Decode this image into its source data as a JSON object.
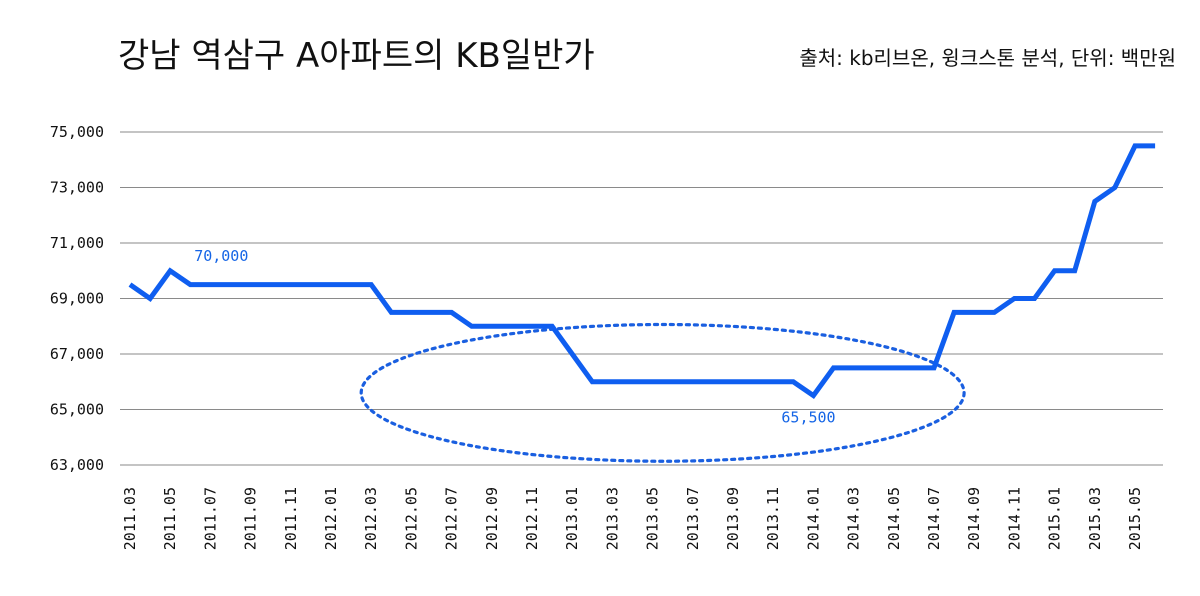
{
  "chart_data": {
    "type": "line",
    "title": "강남 역삼구 A아파트의 KB일반가",
    "source": "출처: kb리브온, 윙크스톤 분석, 단위: 백만원",
    "ylim": [
      63000,
      75000
    ],
    "yticks": [
      "63,000",
      "65,000",
      "67,000",
      "69,000",
      "71,000",
      "73,000",
      "75,000"
    ],
    "ytick_values": [
      63000,
      65000,
      67000,
      69000,
      71000,
      73000,
      75000
    ],
    "x": [
      "2011.03",
      "2011.04",
      "2011.05",
      "2011.06",
      "2011.07",
      "2011.08",
      "2011.09",
      "2011.10",
      "2011.11",
      "2011.12",
      "2012.01",
      "2012.02",
      "2012.03",
      "2012.04",
      "2012.05",
      "2012.06",
      "2012.07",
      "2012.08",
      "2012.09",
      "2012.10",
      "2012.11",
      "2012.12",
      "2013.01",
      "2013.02",
      "2013.03",
      "2013.04",
      "2013.05",
      "2013.06",
      "2013.07",
      "2013.08",
      "2013.09",
      "2013.10",
      "2013.11",
      "2013.12",
      "2014.01",
      "2014.02",
      "2014.03",
      "2014.04",
      "2014.05",
      "2014.06",
      "2014.07",
      "2014.08",
      "2014.09",
      "2014.10",
      "2014.11",
      "2014.12",
      "2015.01",
      "2015.02",
      "2015.03",
      "2015.04",
      "2015.05",
      "2015.06"
    ],
    "xtick_labels": [
      "2011.03",
      "2011.05",
      "2011.07",
      "2011.09",
      "2011.11",
      "2012.01",
      "2012.03",
      "2012.05",
      "2012.07",
      "2012.09",
      "2012.11",
      "2013.01",
      "2013.03",
      "2013.05",
      "2013.07",
      "2013.09",
      "2013.11",
      "2014.01",
      "2014.03",
      "2014.05",
      "2014.07",
      "2014.09",
      "2014.11",
      "2015.01",
      "2015.03",
      "2015.05"
    ],
    "series": [
      {
        "color": "#0f5ef0",
        "values": [
          69500,
          69000,
          70000,
          69500,
          69500,
          69500,
          69500,
          69500,
          69500,
          69500,
          69500,
          69500,
          69500,
          68500,
          68500,
          68500,
          68500,
          68000,
          68000,
          68000,
          68000,
          68000,
          67000,
          66000,
          66000,
          66000,
          66000,
          66000,
          66000,
          66000,
          66000,
          66000,
          66000,
          66000,
          65500,
          66500,
          66500,
          66500,
          66500,
          66500,
          66500,
          68500,
          68500,
          68500,
          69000,
          69000,
          70000,
          70000,
          72500,
          73000,
          74500,
          74500
        ]
      }
    ],
    "annotations": [
      {
        "text": "70,000",
        "x": "2011.05",
        "y": 70000
      },
      {
        "text": "65,500",
        "x": "2014.01",
        "y": 65500
      }
    ],
    "highlight": {
      "from": "2012.03",
      "to": "2014.08",
      "style": "dotted-ellipse",
      "color": "#1a5fe0"
    },
    "grid": true,
    "legend": "none"
  }
}
